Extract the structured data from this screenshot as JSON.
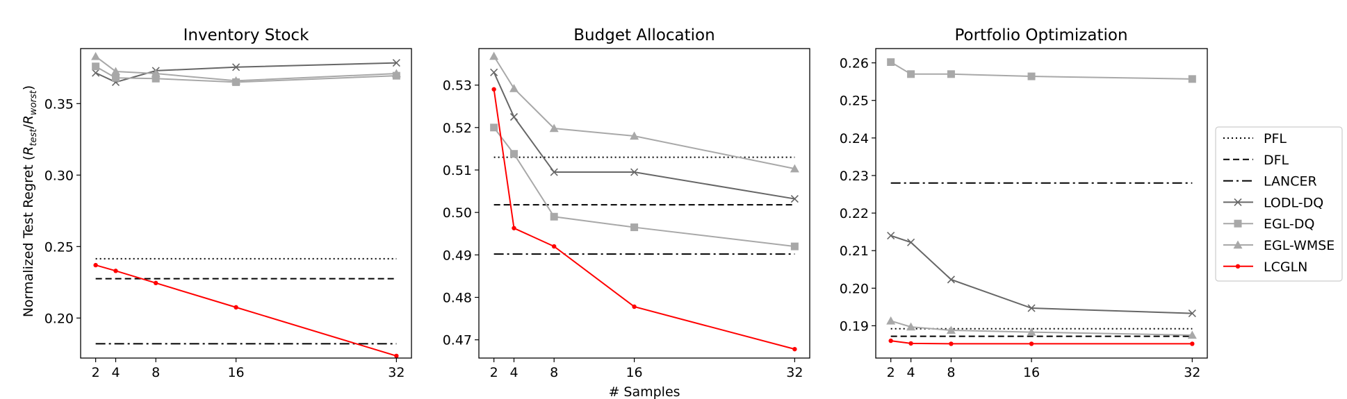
{
  "figure": {
    "xlabel": "# Samples"
  },
  "legend": [
    {
      "label": "PFL",
      "color": "#000000",
      "dash": "2,4",
      "marker": "none"
    },
    {
      "label": "DFL",
      "color": "#000000",
      "dash": "9,5",
      "marker": "none"
    },
    {
      "label": "LANCER",
      "color": "#000000",
      "dash": "14,5,3,5",
      "marker": "none"
    },
    {
      "label": "LODL-DQ",
      "color": "#666666",
      "dash": "",
      "marker": "x"
    },
    {
      "label": "EGL-DQ",
      "color": "#a8a8a8",
      "dash": "",
      "marker": "square"
    },
    {
      "label": "EGL-WMSE",
      "color": "#a8a8a8",
      "dash": "",
      "marker": "triangle"
    },
    {
      "label": "LCGLN",
      "color": "#ff0000",
      "dash": "",
      "marker": "dot"
    }
  ],
  "chart_data": [
    {
      "type": "line",
      "title": "Inventory Stock",
      "xlabel": "",
      "ylabel": "Normalized Test Regret (R_test/R_worst)",
      "ylabel_main": "Normalized Test Regret (",
      "ylabel_R": "R",
      "ylabel_sub1": "test",
      "ylabel_slash": "/",
      "ylabel_sub2": "worst",
      "ylabel_close": ")",
      "x": [
        2,
        4,
        8,
        16,
        32
      ],
      "xticks": [
        "2",
        "4",
        "8",
        "16",
        "32"
      ],
      "xlim": [
        0.5,
        33.5
      ],
      "ylim": [
        0.172,
        0.3885
      ],
      "yticks": [
        0.2,
        0.25,
        0.3,
        0.35
      ],
      "ytick_labels": [
        "0.20",
        "0.25",
        "0.30",
        "0.35"
      ],
      "baselines": {
        "PFL": 0.2415,
        "DFL": 0.2275,
        "LANCER": 0.182
      },
      "series": [
        {
          "name": "LODL-DQ",
          "values": [
            0.3715,
            0.365,
            0.373,
            0.3755,
            0.3785
          ]
        },
        {
          "name": "EGL-DQ",
          "values": [
            0.376,
            0.368,
            0.3675,
            0.365,
            0.3695
          ]
        },
        {
          "name": "EGL-WMSE",
          "values": [
            0.383,
            0.3725,
            0.371,
            0.366,
            0.371
          ]
        },
        {
          "name": "LCGLN",
          "values": [
            0.237,
            0.233,
            0.2245,
            0.2075,
            0.1735
          ]
        }
      ]
    },
    {
      "type": "line",
      "title": "Budget Allocation",
      "x": [
        2,
        4,
        8,
        16,
        32
      ],
      "xticks": [
        "2",
        "4",
        "8",
        "16",
        "32"
      ],
      "xlim": [
        0.5,
        33.5
      ],
      "ylim": [
        0.4657,
        0.5386
      ],
      "yticks": [
        0.47,
        0.48,
        0.49,
        0.5,
        0.51,
        0.52,
        0.53
      ],
      "ytick_labels": [
        "0.47",
        "0.48",
        "0.49",
        "0.50",
        "0.51",
        "0.52",
        "0.53"
      ],
      "baselines": {
        "PFL": 0.513,
        "DFL": 0.5018,
        "LANCER": 0.4902
      },
      "series": [
        {
          "name": "LODL-DQ",
          "values": [
            0.533,
            0.5225,
            0.5095,
            0.5095,
            0.5032
          ]
        },
        {
          "name": "EGL-DQ",
          "values": [
            0.52,
            0.5138,
            0.499,
            0.4965,
            0.492
          ]
        },
        {
          "name": "EGL-WMSE",
          "values": [
            0.5368,
            0.5292,
            0.5198,
            0.518,
            0.5103
          ]
        },
        {
          "name": "LCGLN",
          "values": [
            0.529,
            0.4963,
            0.492,
            0.4778,
            0.4678
          ]
        }
      ]
    },
    {
      "type": "line",
      "title": "Portfolio Optimization",
      "x": [
        2,
        4,
        8,
        16,
        32
      ],
      "xticks": [
        "2",
        "4",
        "8",
        "16",
        "32"
      ],
      "xlim": [
        0.5,
        33.5
      ],
      "ylim": [
        0.1814,
        0.2638
      ],
      "yticks": [
        0.19,
        0.2,
        0.21,
        0.22,
        0.23,
        0.24,
        0.25,
        0.26
      ],
      "ytick_labels": [
        "0.19",
        "0.20",
        "0.21",
        "0.22",
        "0.23",
        "0.24",
        "0.25",
        "0.26"
      ],
      "baselines": {
        "PFL": 0.1892,
        "DFL": 0.1872,
        "LANCER": 0.228
      },
      "series": [
        {
          "name": "LODL-DQ",
          "values": [
            0.214,
            0.2122,
            0.2023,
            0.1947,
            0.1933
          ]
        },
        {
          "name": "EGL-DQ",
          "values": [
            0.2602,
            0.257,
            0.257,
            0.2564,
            0.2557
          ]
        },
        {
          "name": "EGL-WMSE",
          "values": [
            0.1913,
            0.1897,
            0.1888,
            0.1883,
            0.1875
          ]
        },
        {
          "name": "LCGLN",
          "values": [
            0.186,
            0.1853,
            0.1852,
            0.1852,
            0.1852
          ]
        }
      ]
    }
  ]
}
